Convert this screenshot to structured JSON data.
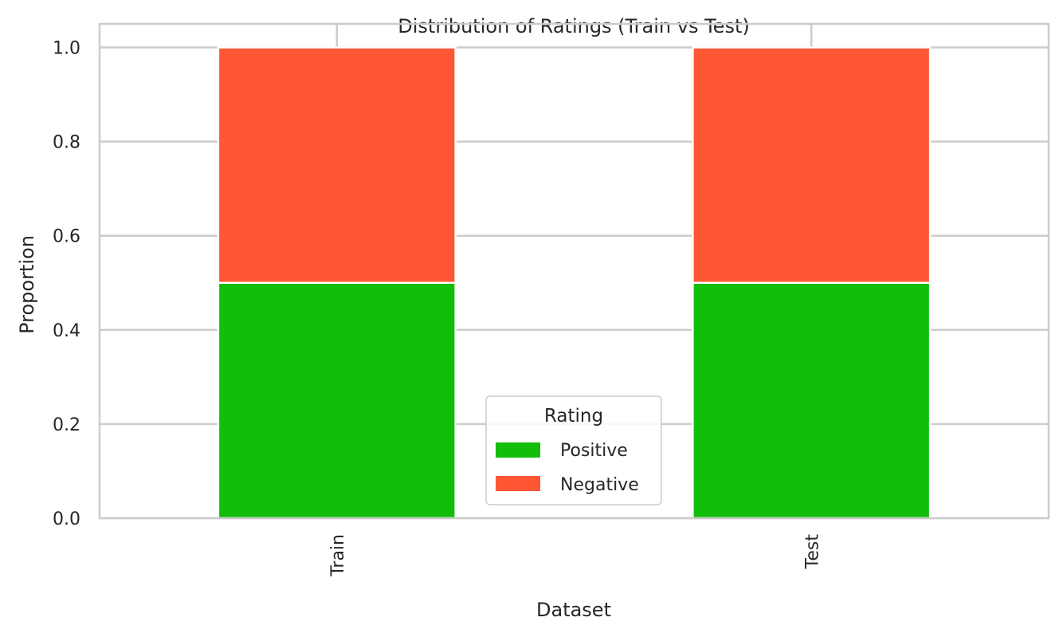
{
  "chart_data": {
    "type": "bar",
    "stacked": true,
    "title": "Distribution of Ratings (Train vs Test)",
    "xlabel": "Dataset",
    "ylabel": "Proportion",
    "categories": [
      "Train",
      "Test"
    ],
    "series": [
      {
        "name": "Positive",
        "values": [
          0.5,
          0.5
        ],
        "color": "#13be0a"
      },
      {
        "name": "Negative",
        "values": [
          0.5,
          0.5
        ],
        "color": "#ff5733"
      }
    ],
    "ylim": [
      0,
      1.05
    ],
    "yticks": [
      0.0,
      0.2,
      0.4,
      0.6,
      0.8,
      1.0
    ],
    "ytick_labels": [
      "0.0",
      "0.2",
      "0.4",
      "0.6",
      "0.8",
      "1.0"
    ],
    "grid": true,
    "legend": {
      "title": "Rating",
      "placement": "lower-center"
    },
    "colors": {
      "grid": "#cccccc",
      "spine": "#cccccc",
      "text": "#262626"
    }
  }
}
